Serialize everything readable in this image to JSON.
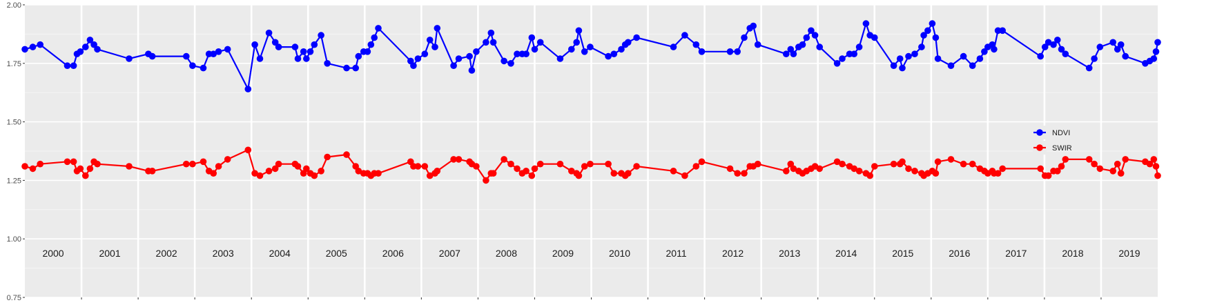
{
  "chart_data": {
    "type": "line",
    "title": "",
    "xlabel": "",
    "ylabel": "",
    "ylim": [
      0.75,
      2.0
    ],
    "y_ticks": [
      "0.75",
      "1.00",
      "1.25",
      "1.50",
      "1.75",
      "2.00"
    ],
    "xlim": [
      2000.0,
      2020.0
    ],
    "x_year_labels": [
      "2000",
      "2001",
      "2002",
      "2003",
      "2004",
      "2005",
      "2006",
      "2007",
      "2008",
      "2009",
      "2010",
      "2011",
      "2012",
      "2013",
      "2014",
      "2015",
      "2016",
      "2017",
      "2018",
      "2019"
    ],
    "grid": true,
    "legend_position": "right",
    "series": [
      {
        "name": "NDVI",
        "color": "#0000ff",
        "points": [
          [
            2000.0,
            1.81
          ],
          [
            2000.14,
            1.82
          ],
          [
            2000.27,
            1.83
          ],
          [
            2000.75,
            1.74
          ],
          [
            2000.86,
            1.74
          ],
          [
            2000.92,
            1.79
          ],
          [
            2000.98,
            1.8
          ],
          [
            2001.07,
            1.82
          ],
          [
            2001.15,
            1.85
          ],
          [
            2001.22,
            1.83
          ],
          [
            2001.28,
            1.81
          ],
          [
            2001.84,
            1.77
          ],
          [
            2002.18,
            1.79
          ],
          [
            2002.25,
            1.78
          ],
          [
            2002.85,
            1.78
          ],
          [
            2002.96,
            1.74
          ],
          [
            2003.15,
            1.73
          ],
          [
            2003.25,
            1.79
          ],
          [
            2003.33,
            1.79
          ],
          [
            2003.42,
            1.8
          ],
          [
            2003.58,
            1.81
          ],
          [
            2003.94,
            1.64
          ],
          [
            2004.06,
            1.83
          ],
          [
            2004.15,
            1.77
          ],
          [
            2004.31,
            1.88
          ],
          [
            2004.42,
            1.84
          ],
          [
            2004.48,
            1.82
          ],
          [
            2004.77,
            1.82
          ],
          [
            2004.82,
            1.77
          ],
          [
            2004.92,
            1.8
          ],
          [
            2004.97,
            1.77
          ],
          [
            2005.04,
            1.8
          ],
          [
            2005.11,
            1.83
          ],
          [
            2005.23,
            1.87
          ],
          [
            2005.34,
            1.75
          ],
          [
            2005.68,
            1.73
          ],
          [
            2005.84,
            1.73
          ],
          [
            2005.89,
            1.78
          ],
          [
            2005.98,
            1.8
          ],
          [
            2006.05,
            1.8
          ],
          [
            2006.11,
            1.83
          ],
          [
            2006.17,
            1.86
          ],
          [
            2006.24,
            1.9
          ],
          [
            2006.81,
            1.76
          ],
          [
            2006.86,
            1.74
          ],
          [
            2006.94,
            1.77
          ],
          [
            2007.06,
            1.79
          ],
          [
            2007.15,
            1.85
          ],
          [
            2007.24,
            1.82
          ],
          [
            2007.28,
            1.9
          ],
          [
            2007.57,
            1.74
          ],
          [
            2007.66,
            1.77
          ],
          [
            2007.85,
            1.78
          ],
          [
            2007.89,
            1.72
          ],
          [
            2007.97,
            1.8
          ],
          [
            2008.14,
            1.84
          ],
          [
            2008.23,
            1.88
          ],
          [
            2008.27,
            1.84
          ],
          [
            2008.46,
            1.76
          ],
          [
            2008.58,
            1.75
          ],
          [
            2008.69,
            1.79
          ],
          [
            2008.78,
            1.79
          ],
          [
            2008.85,
            1.79
          ],
          [
            2008.95,
            1.86
          ],
          [
            2009.0,
            1.81
          ],
          [
            2009.1,
            1.84
          ],
          [
            2009.45,
            1.77
          ],
          [
            2009.65,
            1.81
          ],
          [
            2009.74,
            1.84
          ],
          [
            2009.78,
            1.89
          ],
          [
            2009.88,
            1.8
          ],
          [
            2009.98,
            1.82
          ],
          [
            2010.3,
            1.78
          ],
          [
            2010.4,
            1.79
          ],
          [
            2010.53,
            1.81
          ],
          [
            2010.6,
            1.83
          ],
          [
            2010.65,
            1.84
          ],
          [
            2010.8,
            1.86
          ],
          [
            2011.45,
            1.82
          ],
          [
            2011.65,
            1.87
          ],
          [
            2011.85,
            1.83
          ],
          [
            2011.95,
            1.8
          ],
          [
            2012.45,
            1.8
          ],
          [
            2012.58,
            1.8
          ],
          [
            2012.7,
            1.86
          ],
          [
            2012.8,
            1.9
          ],
          [
            2012.86,
            1.91
          ],
          [
            2012.94,
            1.83
          ],
          [
            2013.44,
            1.79
          ],
          [
            2013.52,
            1.81
          ],
          [
            2013.57,
            1.79
          ],
          [
            2013.66,
            1.82
          ],
          [
            2013.73,
            1.83
          ],
          [
            2013.8,
            1.86
          ],
          [
            2013.88,
            1.89
          ],
          [
            2013.95,
            1.87
          ],
          [
            2014.03,
            1.82
          ],
          [
            2014.34,
            1.75
          ],
          [
            2014.43,
            1.77
          ],
          [
            2014.56,
            1.79
          ],
          [
            2014.64,
            1.79
          ],
          [
            2014.73,
            1.82
          ],
          [
            2014.85,
            1.92
          ],
          [
            2014.92,
            1.87
          ],
          [
            2015.0,
            1.86
          ],
          [
            2015.34,
            1.74
          ],
          [
            2015.45,
            1.77
          ],
          [
            2015.49,
            1.73
          ],
          [
            2015.6,
            1.78
          ],
          [
            2015.71,
            1.79
          ],
          [
            2015.83,
            1.82
          ],
          [
            2015.87,
            1.87
          ],
          [
            2015.94,
            1.89
          ],
          [
            2016.02,
            1.92
          ],
          [
            2016.08,
            1.86
          ],
          [
            2016.12,
            1.77
          ],
          [
            2016.35,
            1.74
          ],
          [
            2016.57,
            1.78
          ],
          [
            2016.73,
            1.74
          ],
          [
            2016.86,
            1.77
          ],
          [
            2016.94,
            1.8
          ],
          [
            2017.0,
            1.82
          ],
          [
            2017.08,
            1.83
          ],
          [
            2017.11,
            1.81
          ],
          [
            2017.18,
            1.89
          ],
          [
            2017.26,
            1.89
          ],
          [
            2017.93,
            1.78
          ],
          [
            2018.01,
            1.82
          ],
          [
            2018.07,
            1.84
          ],
          [
            2018.16,
            1.83
          ],
          [
            2018.23,
            1.85
          ],
          [
            2018.3,
            1.81
          ],
          [
            2018.37,
            1.79
          ],
          [
            2018.79,
            1.73
          ],
          [
            2018.88,
            1.77
          ],
          [
            2018.98,
            1.82
          ],
          [
            2019.21,
            1.84
          ],
          [
            2019.29,
            1.81
          ],
          [
            2019.35,
            1.83
          ],
          [
            2019.43,
            1.78
          ],
          [
            2019.78,
            1.75
          ],
          [
            2019.86,
            1.76
          ],
          [
            2019.93,
            1.77
          ],
          [
            2019.97,
            1.8
          ],
          [
            2020.0,
            1.84
          ]
        ]
      },
      {
        "name": "SWIR",
        "color": "#ff0000",
        "points": [
          [
            2000.0,
            1.31
          ],
          [
            2000.14,
            1.3
          ],
          [
            2000.27,
            1.32
          ],
          [
            2000.75,
            1.33
          ],
          [
            2000.86,
            1.33
          ],
          [
            2000.92,
            1.29
          ],
          [
            2000.98,
            1.3
          ],
          [
            2001.07,
            1.27
          ],
          [
            2001.15,
            1.3
          ],
          [
            2001.22,
            1.33
          ],
          [
            2001.28,
            1.32
          ],
          [
            2001.84,
            1.31
          ],
          [
            2002.18,
            1.29
          ],
          [
            2002.25,
            1.29
          ],
          [
            2002.85,
            1.32
          ],
          [
            2002.96,
            1.32
          ],
          [
            2003.15,
            1.33
          ],
          [
            2003.25,
            1.29
          ],
          [
            2003.33,
            1.28
          ],
          [
            2003.42,
            1.31
          ],
          [
            2003.58,
            1.34
          ],
          [
            2003.94,
            1.38
          ],
          [
            2004.06,
            1.28
          ],
          [
            2004.15,
            1.27
          ],
          [
            2004.31,
            1.29
          ],
          [
            2004.42,
            1.3
          ],
          [
            2004.48,
            1.32
          ],
          [
            2004.77,
            1.32
          ],
          [
            2004.82,
            1.31
          ],
          [
            2004.92,
            1.28
          ],
          [
            2004.97,
            1.3
          ],
          [
            2005.04,
            1.28
          ],
          [
            2005.11,
            1.27
          ],
          [
            2005.23,
            1.29
          ],
          [
            2005.34,
            1.35
          ],
          [
            2005.68,
            1.36
          ],
          [
            2005.84,
            1.31
          ],
          [
            2005.89,
            1.29
          ],
          [
            2005.98,
            1.28
          ],
          [
            2006.05,
            1.28
          ],
          [
            2006.11,
            1.27
          ],
          [
            2006.17,
            1.28
          ],
          [
            2006.24,
            1.28
          ],
          [
            2006.81,
            1.33
          ],
          [
            2006.86,
            1.31
          ],
          [
            2006.94,
            1.31
          ],
          [
            2007.06,
            1.31
          ],
          [
            2007.15,
            1.27
          ],
          [
            2007.24,
            1.28
          ],
          [
            2007.28,
            1.29
          ],
          [
            2007.57,
            1.34
          ],
          [
            2007.66,
            1.34
          ],
          [
            2007.85,
            1.33
          ],
          [
            2007.89,
            1.32
          ],
          [
            2007.97,
            1.31
          ],
          [
            2008.14,
            1.25
          ],
          [
            2008.23,
            1.28
          ],
          [
            2008.27,
            1.28
          ],
          [
            2008.46,
            1.34
          ],
          [
            2008.58,
            1.32
          ],
          [
            2008.69,
            1.3
          ],
          [
            2008.78,
            1.28
          ],
          [
            2008.85,
            1.29
          ],
          [
            2008.95,
            1.27
          ],
          [
            2009.0,
            1.3
          ],
          [
            2009.1,
            1.32
          ],
          [
            2009.45,
            1.32
          ],
          [
            2009.65,
            1.29
          ],
          [
            2009.74,
            1.28
          ],
          [
            2009.78,
            1.27
          ],
          [
            2009.88,
            1.31
          ],
          [
            2009.98,
            1.32
          ],
          [
            2010.3,
            1.32
          ],
          [
            2010.4,
            1.28
          ],
          [
            2010.53,
            1.28
          ],
          [
            2010.6,
            1.27
          ],
          [
            2010.65,
            1.28
          ],
          [
            2010.8,
            1.31
          ],
          [
            2011.45,
            1.29
          ],
          [
            2011.65,
            1.27
          ],
          [
            2011.85,
            1.31
          ],
          [
            2011.95,
            1.33
          ],
          [
            2012.45,
            1.3
          ],
          [
            2012.58,
            1.28
          ],
          [
            2012.7,
            1.28
          ],
          [
            2012.8,
            1.31
          ],
          [
            2012.86,
            1.31
          ],
          [
            2012.94,
            1.32
          ],
          [
            2013.44,
            1.29
          ],
          [
            2013.52,
            1.32
          ],
          [
            2013.57,
            1.3
          ],
          [
            2013.66,
            1.29
          ],
          [
            2013.73,
            1.28
          ],
          [
            2013.8,
            1.29
          ],
          [
            2013.88,
            1.3
          ],
          [
            2013.95,
            1.31
          ],
          [
            2014.03,
            1.3
          ],
          [
            2014.34,
            1.33
          ],
          [
            2014.43,
            1.32
          ],
          [
            2014.56,
            1.31
          ],
          [
            2014.64,
            1.3
          ],
          [
            2014.73,
            1.29
          ],
          [
            2014.85,
            1.28
          ],
          [
            2014.92,
            1.27
          ],
          [
            2015.0,
            1.31
          ],
          [
            2015.34,
            1.32
          ],
          [
            2015.45,
            1.32
          ],
          [
            2015.49,
            1.33
          ],
          [
            2015.6,
            1.3
          ],
          [
            2015.71,
            1.29
          ],
          [
            2015.83,
            1.28
          ],
          [
            2015.87,
            1.27
          ],
          [
            2015.94,
            1.28
          ],
          [
            2016.02,
            1.29
          ],
          [
            2016.08,
            1.28
          ],
          [
            2016.12,
            1.33
          ],
          [
            2016.35,
            1.34
          ],
          [
            2016.57,
            1.32
          ],
          [
            2016.73,
            1.32
          ],
          [
            2016.86,
            1.3
          ],
          [
            2016.94,
            1.29
          ],
          [
            2017.0,
            1.28
          ],
          [
            2017.08,
            1.29
          ],
          [
            2017.11,
            1.28
          ],
          [
            2017.18,
            1.28
          ],
          [
            2017.26,
            1.3
          ],
          [
            2017.93,
            1.3
          ],
          [
            2018.01,
            1.27
          ],
          [
            2018.07,
            1.27
          ],
          [
            2018.16,
            1.29
          ],
          [
            2018.23,
            1.29
          ],
          [
            2018.3,
            1.31
          ],
          [
            2018.37,
            1.34
          ],
          [
            2018.79,
            1.34
          ],
          [
            2018.88,
            1.32
          ],
          [
            2018.98,
            1.3
          ],
          [
            2019.21,
            1.29
          ],
          [
            2019.29,
            1.32
          ],
          [
            2019.35,
            1.28
          ],
          [
            2019.43,
            1.34
          ],
          [
            2019.78,
            1.33
          ],
          [
            2019.86,
            1.32
          ],
          [
            2019.93,
            1.34
          ],
          [
            2019.97,
            1.31
          ],
          [
            2020.0,
            1.27
          ]
        ]
      }
    ]
  }
}
